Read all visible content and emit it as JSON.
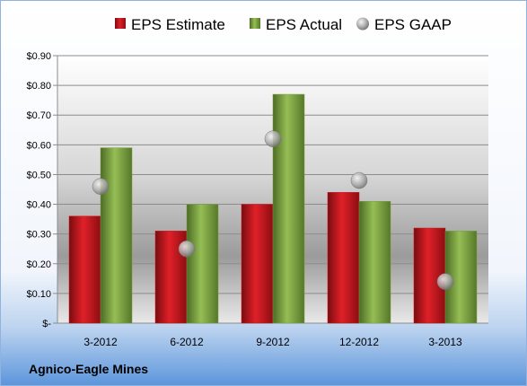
{
  "chart_data": {
    "type": "bar",
    "categories": [
      "3-2012",
      "6-2012",
      "9-2012",
      "12-2012",
      "3-2013"
    ],
    "series": [
      {
        "name": "EPS Estimate",
        "kind": "bar",
        "color": "#c8161d",
        "values": [
          0.36,
          0.31,
          0.4,
          0.44,
          0.32
        ]
      },
      {
        "name": "EPS Actual",
        "kind": "bar",
        "color": "#79a042",
        "values": [
          0.59,
          0.4,
          0.77,
          0.41,
          0.31
        ]
      },
      {
        "name": "EPS GAAP",
        "kind": "marker",
        "color": "#a6a6a6",
        "values": [
          0.46,
          0.25,
          0.62,
          0.48,
          0.14
        ]
      }
    ],
    "y_ticks": [
      "$-",
      "$0.10",
      "$0.20",
      "$0.30",
      "$0.40",
      "$0.50",
      "$0.60",
      "$0.70",
      "$0.80",
      "$0.90"
    ],
    "ylim": [
      0,
      0.9
    ],
    "ystep": 0.1,
    "grid": true,
    "legend": "top",
    "footer": "Agnico-Eagle Mines"
  }
}
